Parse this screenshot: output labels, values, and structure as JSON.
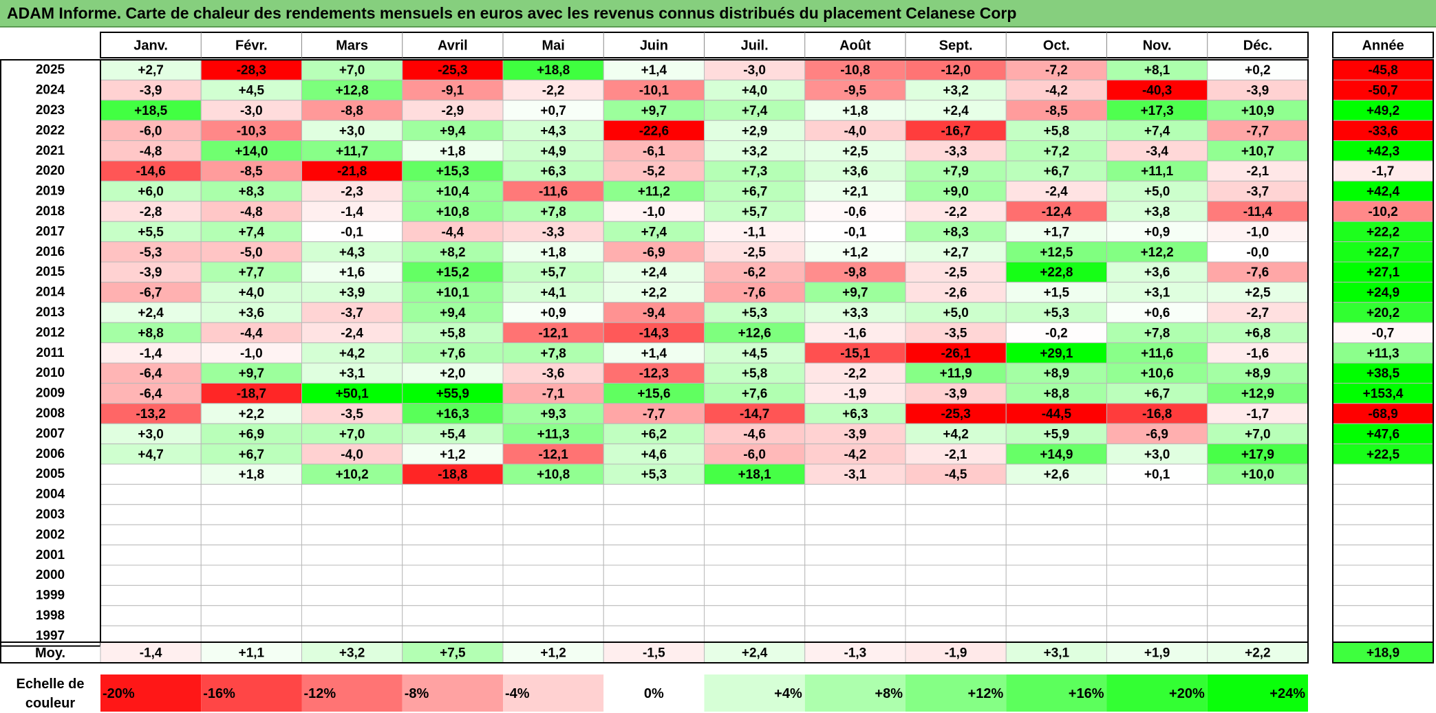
{
  "title": "ADAM Informe. Carte de chaleur des rendements mensuels en euros avec les revenus connus distribués du placement Celanese Corp",
  "chart_data": {
    "type": "heatmap",
    "title": "ADAM Informe. Carte de chaleur des rendements mensuels en euros avec les revenus connus distribués du placement Celanese Corp",
    "columns": [
      "Janv.",
      "Févr.",
      "Mars",
      "Avril",
      "Mai",
      "Juin",
      "Juil.",
      "Août",
      "Sept.",
      "Oct.",
      "Nov.",
      "Déc."
    ],
    "year_header": "Année",
    "rows": [
      {
        "year": "2025",
        "months": [
          "+2,7",
          "-28,3",
          "+7,0",
          "-25,3",
          "+18,8",
          "+1,4",
          "-3,0",
          "-10,8",
          "-12,0",
          "-7,2",
          "+8,1",
          "+0,2"
        ],
        "annual": "-45,8"
      },
      {
        "year": "2024",
        "months": [
          "-3,9",
          "+4,5",
          "+12,8",
          "-9,1",
          "-2,2",
          "-10,1",
          "+4,0",
          "-9,5",
          "+3,2",
          "-4,2",
          "-40,3",
          "-3,9"
        ],
        "annual": "-50,7"
      },
      {
        "year": "2023",
        "months": [
          "+18,5",
          "-3,0",
          "-8,8",
          "-2,9",
          "+0,7",
          "+9,7",
          "+7,4",
          "+1,8",
          "+2,4",
          "-8,5",
          "+17,3",
          "+10,9"
        ],
        "annual": "+49,2"
      },
      {
        "year": "2022",
        "months": [
          "-6,0",
          "-10,3",
          "+3,0",
          "+9,4",
          "+4,3",
          "-22,6",
          "+2,9",
          "-4,0",
          "-16,7",
          "+5,8",
          "+7,4",
          "-7,7"
        ],
        "annual": "-33,6"
      },
      {
        "year": "2021",
        "months": [
          "-4,8",
          "+14,0",
          "+11,7",
          "+1,8",
          "+4,9",
          "-6,1",
          "+3,2",
          "+2,5",
          "-3,3",
          "+7,2",
          "-3,4",
          "+10,7"
        ],
        "annual": "+42,3"
      },
      {
        "year": "2020",
        "months": [
          "-14,6",
          "-8,5",
          "-21,8",
          "+15,3",
          "+6,3",
          "-5,2",
          "+7,3",
          "+3,6",
          "+7,9",
          "+6,7",
          "+11,1",
          "-2,1"
        ],
        "annual": "-1,7"
      },
      {
        "year": "2019",
        "months": [
          "+6,0",
          "+8,3",
          "-2,3",
          "+10,4",
          "-11,6",
          "+11,2",
          "+6,7",
          "+2,1",
          "+9,0",
          "-2,4",
          "+5,0",
          "-3,7"
        ],
        "annual": "+42,4"
      },
      {
        "year": "2018",
        "months": [
          "-2,8",
          "-4,8",
          "-1,4",
          "+10,8",
          "+7,8",
          "-1,0",
          "+5,7",
          "-0,6",
          "-2,2",
          "-12,4",
          "+3,8",
          "-11,4"
        ],
        "annual": "-10,2"
      },
      {
        "year": "2017",
        "months": [
          "+5,5",
          "+7,4",
          "-0,1",
          "-4,4",
          "-3,3",
          "+7,4",
          "-1,1",
          "-0,1",
          "+8,3",
          "+1,7",
          "+0,9",
          "-1,0"
        ],
        "annual": "+22,2"
      },
      {
        "year": "2016",
        "months": [
          "-5,3",
          "-5,0",
          "+4,3",
          "+8,2",
          "+1,8",
          "-6,9",
          "-2,5",
          "+1,2",
          "+2,7",
          "+12,5",
          "+12,2",
          "-0,0"
        ],
        "annual": "+22,7"
      },
      {
        "year": "2015",
        "months": [
          "-3,9",
          "+7,7",
          "+1,6",
          "+15,2",
          "+5,7",
          "+2,4",
          "-6,2",
          "-9,8",
          "-2,5",
          "+22,8",
          "+3,6",
          "-7,6"
        ],
        "annual": "+27,1"
      },
      {
        "year": "2014",
        "months": [
          "-6,7",
          "+4,0",
          "+3,9",
          "+10,1",
          "+4,1",
          "+2,2",
          "-7,6",
          "+9,7",
          "-2,6",
          "+1,5",
          "+3,1",
          "+2,5"
        ],
        "annual": "+24,9"
      },
      {
        "year": "2013",
        "months": [
          "+2,4",
          "+3,6",
          "-3,7",
          "+9,4",
          "+0,9",
          "-9,4",
          "+5,3",
          "+3,3",
          "+5,0",
          "+5,3",
          "+0,6",
          "-2,7"
        ],
        "annual": "+20,2"
      },
      {
        "year": "2012",
        "months": [
          "+8,8",
          "-4,4",
          "-2,4",
          "+5,8",
          "-12,1",
          "-14,3",
          "+12,6",
          "-1,6",
          "-3,5",
          "-0,2",
          "+7,8",
          "+6,8"
        ],
        "annual": "-0,7"
      },
      {
        "year": "2011",
        "months": [
          "-1,4",
          "-1,0",
          "+4,2",
          "+7,6",
          "+7,8",
          "+1,4",
          "+4,5",
          "-15,1",
          "-26,1",
          "+29,1",
          "+11,6",
          "-1,6"
        ],
        "annual": "+11,3"
      },
      {
        "year": "2010",
        "months": [
          "-6,4",
          "+9,7",
          "+3,1",
          "+2,0",
          "-3,6",
          "-12,3",
          "+5,8",
          "-2,2",
          "+11,9",
          "+8,9",
          "+10,6",
          "+8,9"
        ],
        "annual": "+38,5"
      },
      {
        "year": "2009",
        "months": [
          "-6,4",
          "-18,7",
          "+50,1",
          "+55,9",
          "-7,1",
          "+15,6",
          "+7,6",
          "-1,9",
          "-3,9",
          "+8,8",
          "+6,7",
          "+12,9"
        ],
        "annual": "+153,4"
      },
      {
        "year": "2008",
        "months": [
          "-13,2",
          "+2,2",
          "-3,5",
          "+16,3",
          "+9,3",
          "-7,7",
          "-14,7",
          "+6,3",
          "-25,3",
          "-44,5",
          "-16,8",
          "-1,7"
        ],
        "annual": "-68,9"
      },
      {
        "year": "2007",
        "months": [
          "+3,0",
          "+6,9",
          "+7,0",
          "+5,4",
          "+11,3",
          "+6,2",
          "-4,6",
          "-3,9",
          "+4,2",
          "+5,9",
          "-6,9",
          "+7,0"
        ],
        "annual": "+47,6"
      },
      {
        "year": "2006",
        "months": [
          "+4,7",
          "+6,7",
          "-4,0",
          "+1,2",
          "-12,1",
          "+4,6",
          "-6,0",
          "-4,2",
          "-2,1",
          "+14,9",
          "+3,0",
          "+17,9"
        ],
        "annual": "+22,5"
      },
      {
        "year": "2005",
        "months": [
          "",
          "+1,8",
          "+10,2",
          "-18,8",
          "+10,8",
          "+5,3",
          "+18,1",
          "-3,1",
          "-4,5",
          "+2,6",
          "+0,1",
          "+10,0"
        ],
        "annual": ""
      },
      {
        "year": "2004",
        "months": [
          "",
          "",
          "",
          "",
          "",
          "",
          "",
          "",
          "",
          "",
          "",
          ""
        ],
        "annual": ""
      },
      {
        "year": "2003",
        "months": [
          "",
          "",
          "",
          "",
          "",
          "",
          "",
          "",
          "",
          "",
          "",
          ""
        ],
        "annual": ""
      },
      {
        "year": "2002",
        "months": [
          "",
          "",
          "",
          "",
          "",
          "",
          "",
          "",
          "",
          "",
          "",
          ""
        ],
        "annual": ""
      },
      {
        "year": "2001",
        "months": [
          "",
          "",
          "",
          "",
          "",
          "",
          "",
          "",
          "",
          "",
          "",
          ""
        ],
        "annual": ""
      },
      {
        "year": "2000",
        "months": [
          "",
          "",
          "",
          "",
          "",
          "",
          "",
          "",
          "",
          "",
          "",
          ""
        ],
        "annual": ""
      },
      {
        "year": "1999",
        "months": [
          "",
          "",
          "",
          "",
          "",
          "",
          "",
          "",
          "",
          "",
          "",
          ""
        ],
        "annual": ""
      },
      {
        "year": "1998",
        "months": [
          "",
          "",
          "",
          "",
          "",
          "",
          "",
          "",
          "",
          "",
          "",
          ""
        ],
        "annual": ""
      },
      {
        "year": "1997",
        "months": [
          "",
          "",
          "",
          "",
          "",
          "",
          "",
          "",
          "",
          "",
          "",
          ""
        ],
        "annual": ""
      }
    ],
    "average": {
      "label": "Moy.",
      "months": [
        "-1,4",
        "+1,1",
        "+3,2",
        "+7,5",
        "+1,2",
        "-1,5",
        "+2,4",
        "-1,3",
        "-1,9",
        "+3,1",
        "+1,9",
        "+2,2"
      ],
      "annual": "+18,9"
    },
    "scale": {
      "label_line1": "Echelle de",
      "label_line2": "couleur",
      "labels": [
        "-20%",
        "-16%",
        "-12%",
        "-8%",
        "-4%",
        "0%",
        "+4%",
        "+8%",
        "+12%",
        "+16%",
        "+20%",
        "+24%"
      ],
      "values": [
        -20,
        -16,
        -12,
        -8,
        -4,
        0,
        4,
        8,
        12,
        16,
        20,
        24
      ]
    },
    "colors": {
      "neg_max": "#ff0000",
      "pos_max": "#00ff00",
      "neutral": "#ffffff",
      "title_bar": "#86cf7e"
    }
  }
}
